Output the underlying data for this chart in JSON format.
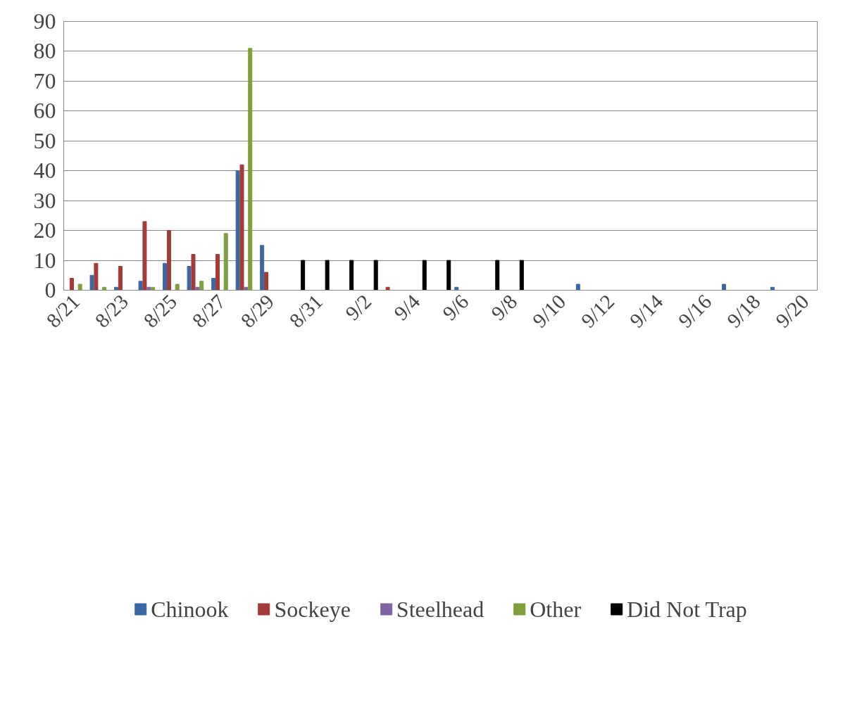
{
  "chart_data": {
    "type": "bar",
    "categories": [
      "8/21",
      null,
      "8/23",
      null,
      "8/25",
      null,
      "8/27",
      null,
      "8/29",
      null,
      "8/31",
      null,
      "9/2",
      null,
      "9/4",
      null,
      "9/6",
      null,
      "9/8",
      null,
      "9/10",
      null,
      "9/12",
      null,
      "9/14",
      null,
      "9/16",
      null,
      "9/18",
      null,
      "9/20"
    ],
    "series": [
      {
        "name": "Chinook",
        "color": "#3c67a5",
        "values": [
          null,
          5,
          1,
          3,
          9,
          8,
          4,
          40,
          15,
          null,
          null,
          null,
          null,
          null,
          null,
          null,
          1,
          null,
          null,
          null,
          null,
          2,
          null,
          null,
          null,
          null,
          null,
          2,
          null,
          1,
          null
        ]
      },
      {
        "name": "Sockeye",
        "color": "#a33b38",
        "values": [
          4,
          9,
          8,
          23,
          20,
          12,
          12,
          42,
          6,
          null,
          null,
          null,
          null,
          1,
          null,
          null,
          null,
          null,
          null,
          null,
          null,
          null,
          null,
          null,
          null,
          null,
          null,
          null,
          null,
          null,
          null
        ]
      },
      {
        "name": "Steelhead",
        "color": "#7f64a1",
        "values": [
          null,
          null,
          null,
          1,
          null,
          1,
          null,
          1,
          null,
          null,
          null,
          null,
          null,
          null,
          null,
          null,
          null,
          null,
          null,
          null,
          null,
          null,
          null,
          null,
          null,
          null,
          null,
          null,
          null,
          null,
          null
        ]
      },
      {
        "name": "Other",
        "color": "#7f9f3c",
        "values": [
          2,
          1,
          null,
          1,
          2,
          3,
          19,
          81,
          null,
          null,
          null,
          null,
          null,
          null,
          null,
          null,
          null,
          null,
          null,
          null,
          null,
          null,
          null,
          null,
          null,
          null,
          null,
          null,
          null,
          null,
          null
        ]
      },
      {
        "name": "Did Not Trap",
        "color": "#000000",
        "values": [
          null,
          null,
          null,
          null,
          null,
          null,
          null,
          null,
          null,
          10,
          10,
          10,
          10,
          null,
          10,
          10,
          null,
          10,
          10,
          null,
          null,
          null,
          null,
          null,
          null,
          null,
          null,
          null,
          null,
          null,
          null
        ]
      }
    ],
    "ylim": [
      0,
      90
    ],
    "yticks": [
      0,
      10,
      20,
      30,
      40,
      50,
      60,
      70,
      80,
      90
    ],
    "grid": "y",
    "legend": "bottom"
  }
}
